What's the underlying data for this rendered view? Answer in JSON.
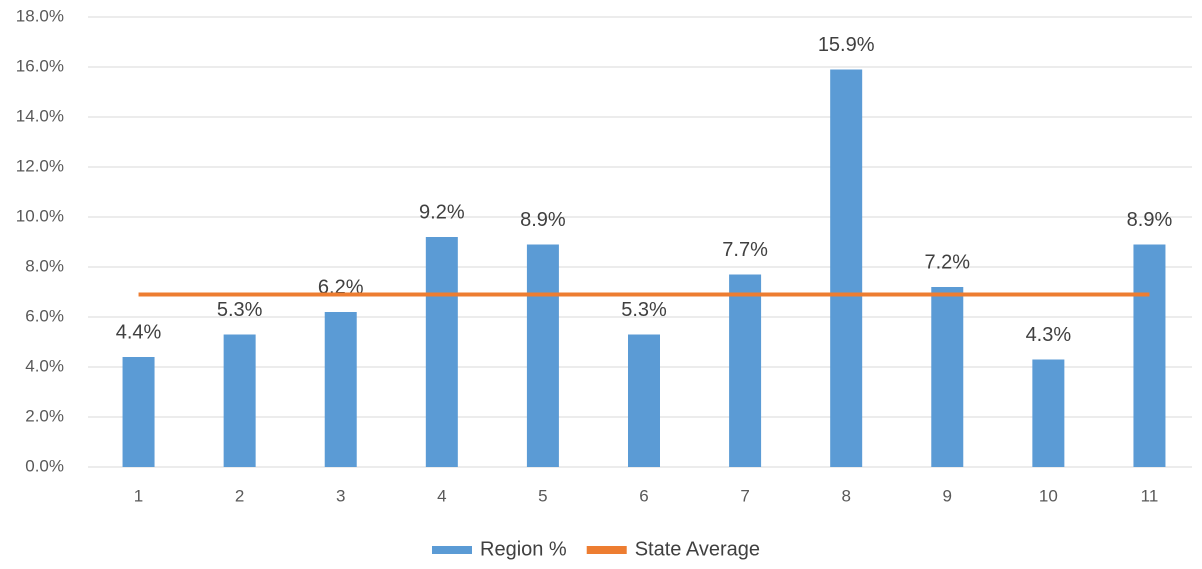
{
  "chart_data": {
    "type": "bar",
    "categories": [
      "1",
      "2",
      "3",
      "4",
      "5",
      "6",
      "7",
      "8",
      "9",
      "10",
      "11"
    ],
    "series": [
      {
        "name": "Region %",
        "color": "#5b9bd5",
        "type": "bar",
        "values": [
          4.4,
          5.3,
          6.2,
          9.2,
          8.9,
          5.3,
          7.7,
          15.9,
          7.2,
          4.3,
          8.9
        ],
        "value_labels": [
          "4.4%",
          "5.3%",
          "6.2%",
          "9.2%",
          "8.9%",
          "5.3%",
          "7.7%",
          "15.9%",
          "7.2%",
          "4.3%",
          "8.9%"
        ]
      },
      {
        "name": "State Average",
        "color": "#ed7d31",
        "type": "line",
        "values": [
          6.9,
          6.9,
          6.9,
          6.9,
          6.9,
          6.9,
          6.9,
          6.9,
          6.9,
          6.9,
          6.9
        ]
      }
    ],
    "ylim": [
      0,
      18
    ],
    "yticks": [
      {
        "value": 0,
        "label": "0.0%"
      },
      {
        "value": 2,
        "label": "2.0%"
      },
      {
        "value": 4,
        "label": "4.0%"
      },
      {
        "value": 6,
        "label": "6.0%"
      },
      {
        "value": 8,
        "label": "8.0%"
      },
      {
        "value": 10,
        "label": "10.0%"
      },
      {
        "value": 12,
        "label": "12.0%"
      },
      {
        "value": 14,
        "label": "14.0%"
      },
      {
        "value": 16,
        "label": "16.0%"
      },
      {
        "value": 18,
        "label": "18.0%"
      }
    ],
    "grid": true,
    "legend": "bottom"
  }
}
